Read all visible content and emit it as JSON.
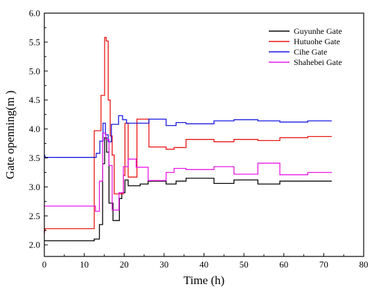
{
  "chart_data": {
    "type": "line",
    "title": "",
    "xlabel": "Time (h)",
    "ylabel": "Gate openning(m )",
    "xlim": [
      0,
      80
    ],
    "ylim": [
      1.8,
      6.0
    ],
    "xticks": [
      0,
      10,
      20,
      30,
      40,
      50,
      60,
      70,
      80
    ],
    "yticks": [
      2.0,
      2.5,
      3.0,
      3.5,
      4.0,
      4.5,
      5.0,
      5.5,
      6.0
    ],
    "xtick_labels": [
      "0",
      "10",
      "20",
      "30",
      "40",
      "50",
      "60",
      "70",
      "80"
    ],
    "ytick_labels": [
      "2.0",
      "2.5",
      "3.0",
      "3.5",
      "4.0",
      "4.5",
      "5.0",
      "5.5",
      "6.0"
    ],
    "grid": false,
    "legend_position": "top-right",
    "series": [
      {
        "name": "Guyunhe Gate",
        "color": "#000000",
        "points": [
          [
            0,
            2.07
          ],
          [
            12.5,
            2.07
          ],
          [
            12.5,
            2.1
          ],
          [
            13.8,
            2.1
          ],
          [
            13.8,
            2.35
          ],
          [
            14.6,
            2.35
          ],
          [
            14.6,
            3.4
          ],
          [
            15.1,
            3.4
          ],
          [
            15.1,
            3.85
          ],
          [
            15.6,
            3.85
          ],
          [
            15.6,
            3.6
          ],
          [
            16.2,
            3.6
          ],
          [
            16.2,
            2.72
          ],
          [
            17.2,
            2.72
          ],
          [
            17.2,
            2.42
          ],
          [
            18.8,
            2.42
          ],
          [
            18.8,
            2.8
          ],
          [
            19.4,
            2.8
          ],
          [
            19.4,
            2.9
          ],
          [
            20.2,
            2.9
          ],
          [
            20.2,
            3.12
          ],
          [
            21.0,
            3.12
          ],
          [
            21.0,
            3.02
          ],
          [
            24.0,
            3.02
          ],
          [
            24.0,
            3.05
          ],
          [
            26.0,
            3.05
          ],
          [
            26.0,
            3.1
          ],
          [
            30.5,
            3.1
          ],
          [
            30.5,
            3.05
          ],
          [
            33.0,
            3.05
          ],
          [
            33.0,
            3.1
          ],
          [
            35.5,
            3.1
          ],
          [
            35.5,
            3.15
          ],
          [
            42.5,
            3.15
          ],
          [
            42.5,
            3.06
          ],
          [
            47.5,
            3.06
          ],
          [
            47.5,
            3.12
          ],
          [
            53.5,
            3.12
          ],
          [
            53.5,
            3.05
          ],
          [
            59.0,
            3.05
          ],
          [
            59.0,
            3.1
          ],
          [
            72.0,
            3.1
          ]
        ]
      },
      {
        "name": "Hutuohe Gate",
        "color": "#e8130f",
        "points": [
          [
            0,
            2.2
          ],
          [
            0.2,
            2.28
          ],
          [
            12.5,
            2.28
          ],
          [
            12.5,
            3.97
          ],
          [
            14.2,
            3.97
          ],
          [
            14.2,
            4.58
          ],
          [
            15.1,
            4.58
          ],
          [
            15.1,
            5.58
          ],
          [
            15.5,
            5.58
          ],
          [
            15.5,
            5.52
          ],
          [
            16.0,
            5.52
          ],
          [
            16.0,
            4.5
          ],
          [
            16.5,
            4.5
          ],
          [
            16.5,
            3.88
          ],
          [
            17.0,
            3.88
          ],
          [
            17.0,
            3.55
          ],
          [
            17.5,
            3.55
          ],
          [
            17.5,
            2.88
          ],
          [
            19.8,
            2.88
          ],
          [
            19.8,
            3.2
          ],
          [
            20.2,
            3.2
          ],
          [
            20.2,
            4.1
          ],
          [
            21.0,
            4.1
          ],
          [
            21.0,
            3.17
          ],
          [
            23.2,
            3.17
          ],
          [
            23.2,
            4.17
          ],
          [
            26.2,
            4.17
          ],
          [
            26.2,
            3.69
          ],
          [
            30.5,
            3.69
          ],
          [
            30.5,
            3.65
          ],
          [
            32.5,
            3.65
          ],
          [
            32.5,
            3.68
          ],
          [
            35.5,
            3.68
          ],
          [
            35.5,
            3.82
          ],
          [
            42.5,
            3.82
          ],
          [
            42.5,
            3.78
          ],
          [
            47.5,
            3.78
          ],
          [
            47.5,
            3.82
          ],
          [
            53.5,
            3.82
          ],
          [
            53.5,
            3.8
          ],
          [
            59.0,
            3.8
          ],
          [
            59.0,
            3.85
          ],
          [
            66.0,
            3.85
          ],
          [
            66.0,
            3.87
          ],
          [
            72.0,
            3.87
          ]
        ]
      },
      {
        "name": "Cihe Gate",
        "color": "#1414e0",
        "points": [
          [
            0,
            3.56
          ],
          [
            0.3,
            3.51
          ],
          [
            13.0,
            3.51
          ],
          [
            13.0,
            3.58
          ],
          [
            13.9,
            3.58
          ],
          [
            13.9,
            3.79
          ],
          [
            14.7,
            3.79
          ],
          [
            14.7,
            4.1
          ],
          [
            15.3,
            4.1
          ],
          [
            15.3,
            3.9
          ],
          [
            16.0,
            3.9
          ],
          [
            16.0,
            3.78
          ],
          [
            16.8,
            3.78
          ],
          [
            16.8,
            4.08
          ],
          [
            18.6,
            4.08
          ],
          [
            18.6,
            4.23
          ],
          [
            19.6,
            4.23
          ],
          [
            19.6,
            4.16
          ],
          [
            20.6,
            4.16
          ],
          [
            20.6,
            4.1
          ],
          [
            26.2,
            4.1
          ],
          [
            26.2,
            4.17
          ],
          [
            30.5,
            4.17
          ],
          [
            30.5,
            4.06
          ],
          [
            33.0,
            4.06
          ],
          [
            33.0,
            4.11
          ],
          [
            35.5,
            4.11
          ],
          [
            35.5,
            4.09
          ],
          [
            42.5,
            4.09
          ],
          [
            42.5,
            4.14
          ],
          [
            47.5,
            4.14
          ],
          [
            47.5,
            4.16
          ],
          [
            53.5,
            4.16
          ],
          [
            53.5,
            4.14
          ],
          [
            59.0,
            4.14
          ],
          [
            59.0,
            4.12
          ],
          [
            66.0,
            4.12
          ],
          [
            66.0,
            4.14
          ],
          [
            72.0,
            4.14
          ]
        ]
      },
      {
        "name": "Shahebei Gate",
        "color": "#e815e8",
        "points": [
          [
            0,
            2.67
          ],
          [
            12.8,
            2.67
          ],
          [
            12.8,
            2.58
          ],
          [
            13.8,
            2.58
          ],
          [
            13.8,
            3.1
          ],
          [
            14.6,
            3.1
          ],
          [
            14.6,
            3.93
          ],
          [
            15.4,
            3.93
          ],
          [
            15.4,
            3.82
          ],
          [
            16.2,
            3.82
          ],
          [
            16.2,
            3.37
          ],
          [
            17.0,
            3.37
          ],
          [
            17.0,
            2.6
          ],
          [
            18.7,
            2.6
          ],
          [
            18.7,
            2.9
          ],
          [
            19.8,
            2.9
          ],
          [
            19.8,
            3.35
          ],
          [
            21.0,
            3.35
          ],
          [
            21.0,
            3.48
          ],
          [
            23.0,
            3.48
          ],
          [
            23.0,
            3.34
          ],
          [
            26.0,
            3.34
          ],
          [
            26.0,
            3.11
          ],
          [
            30.5,
            3.11
          ],
          [
            30.5,
            3.25
          ],
          [
            32.5,
            3.25
          ],
          [
            32.5,
            3.32
          ],
          [
            35.5,
            3.32
          ],
          [
            35.5,
            3.3
          ],
          [
            42.5,
            3.3
          ],
          [
            42.5,
            3.35
          ],
          [
            47.5,
            3.35
          ],
          [
            47.5,
            3.22
          ],
          [
            53.5,
            3.22
          ],
          [
            53.5,
            3.41
          ],
          [
            59.0,
            3.41
          ],
          [
            59.0,
            3.21
          ],
          [
            66.0,
            3.21
          ],
          [
            66.0,
            3.25
          ],
          [
            72.0,
            3.25
          ]
        ]
      }
    ]
  }
}
